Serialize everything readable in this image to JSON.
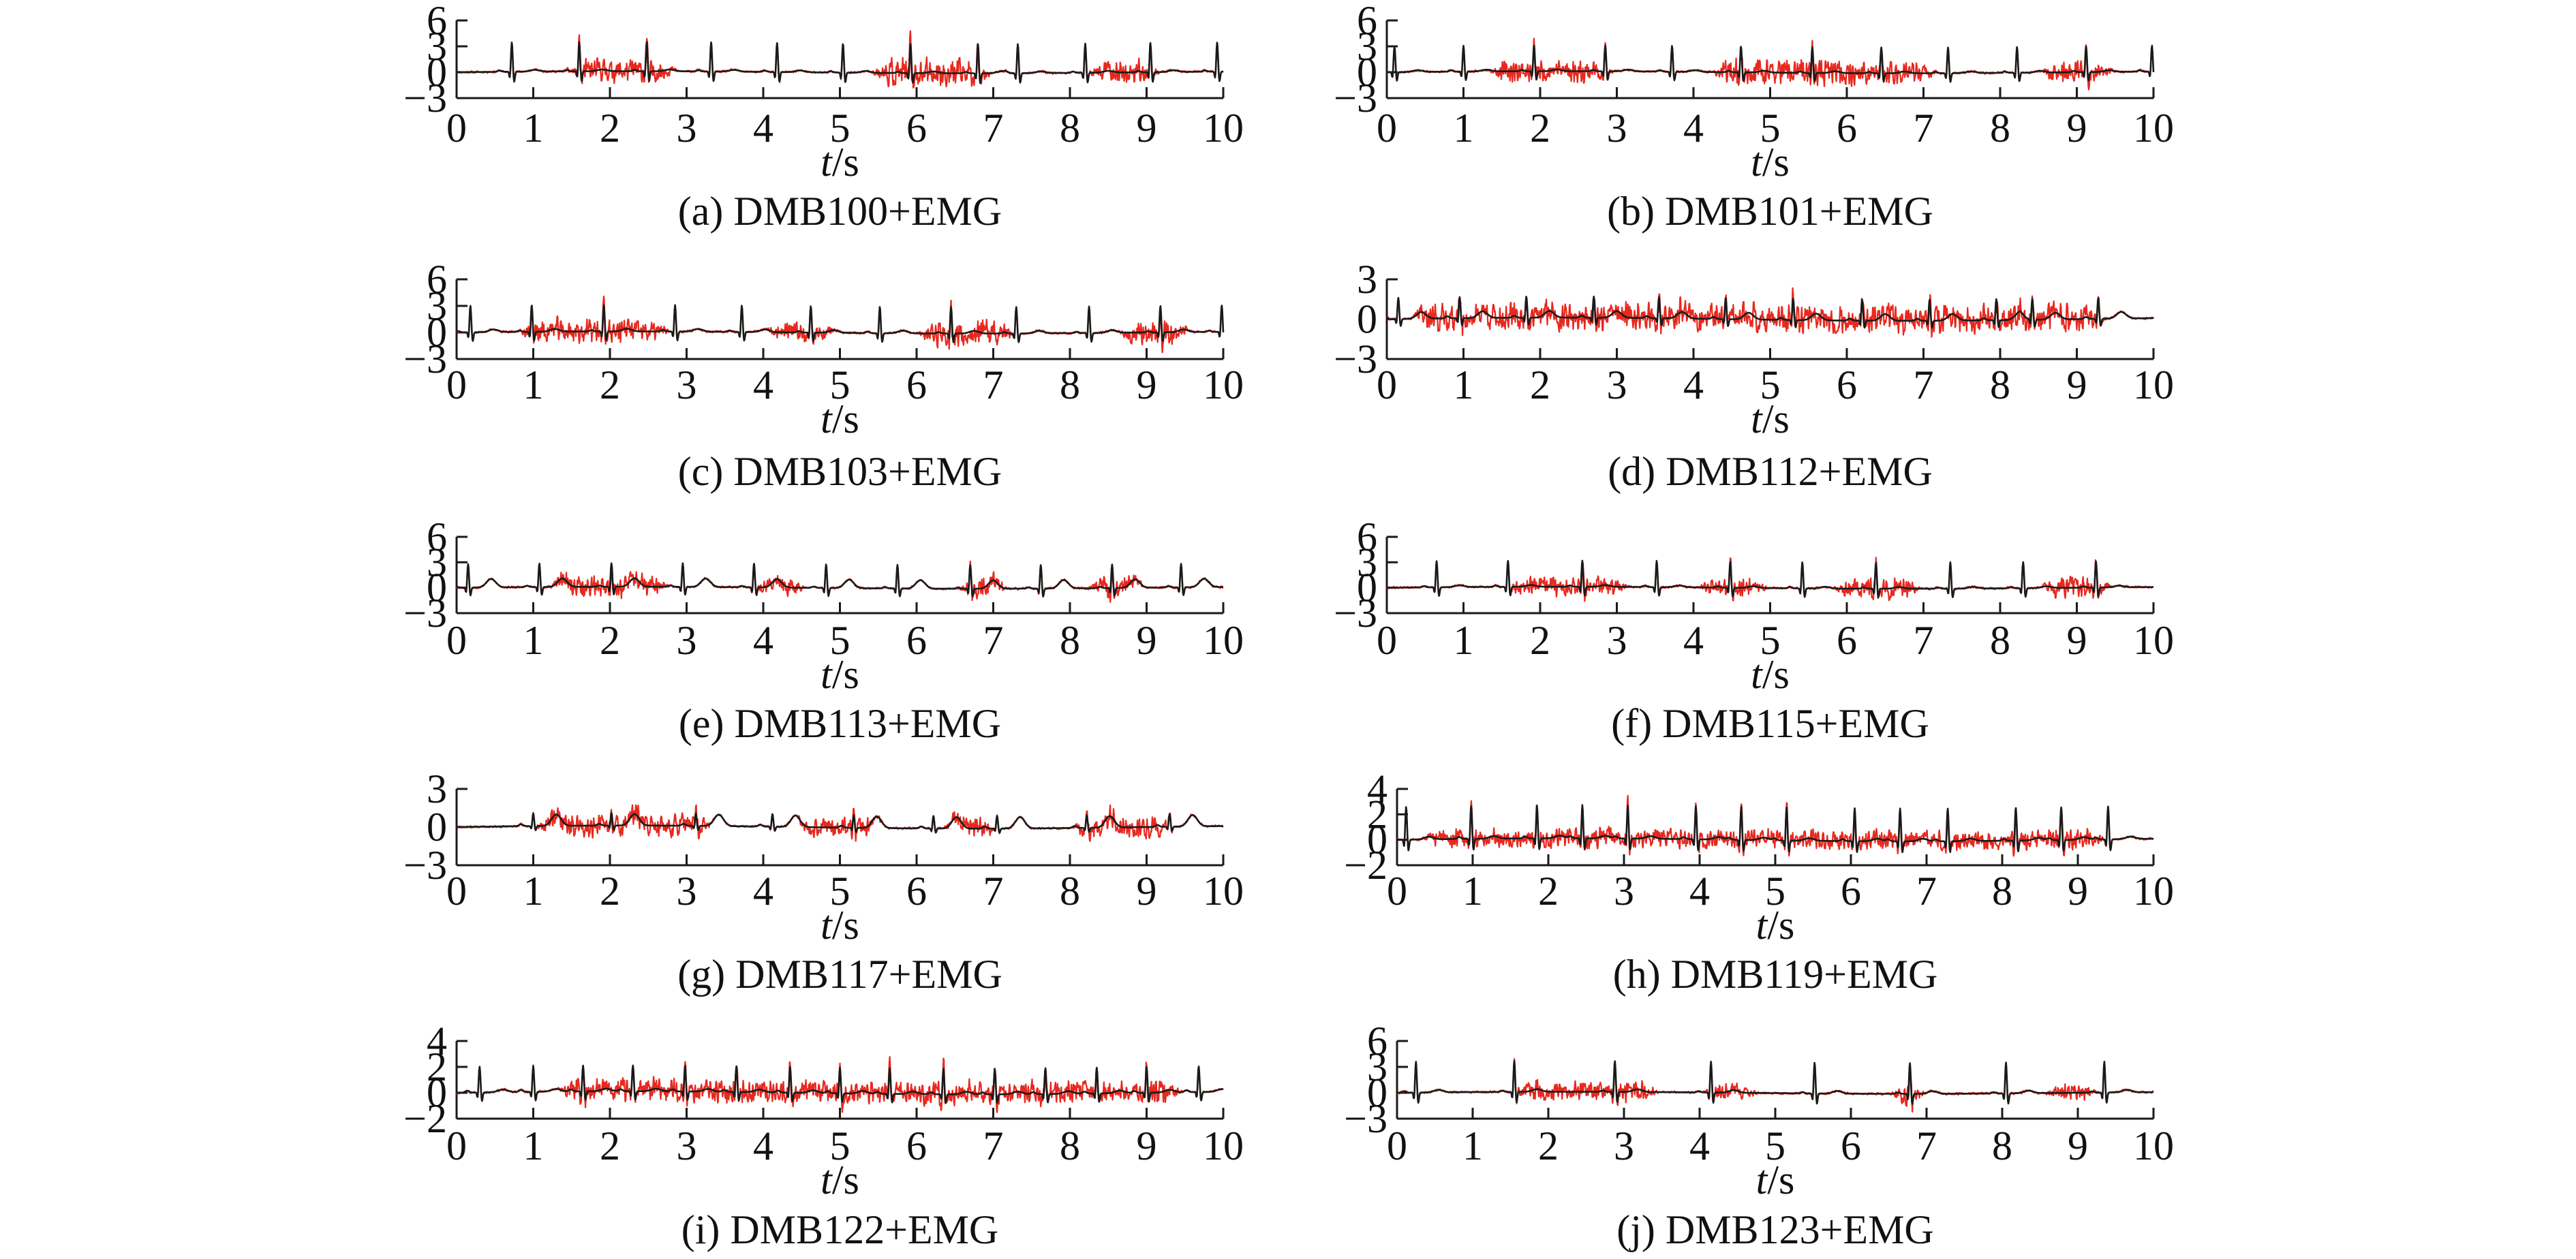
{
  "colors": {
    "clean": "#1a1a1a",
    "noisy": "#e8281e",
    "axis": "#1a1a1a"
  },
  "chart_data": [
    {
      "type": "line",
      "caption": "(a) DMB100+EMG",
      "x_var": "t",
      "x_unit": "/s",
      "xlim": [
        0,
        10
      ],
      "xticks": [
        "0",
        "1",
        "2",
        "3",
        "4",
        "5",
        "6",
        "7",
        "8",
        "9",
        "10"
      ],
      "ylim": [
        -3,
        6
      ],
      "yticks": [
        {
          "v": 6,
          "label": "6"
        },
        {
          "v": 3,
          "label": "3"
        },
        {
          "v": 0,
          "label": "0"
        },
        {
          "v": -3,
          "label": "−3"
        }
      ],
      "beats": [
        0.72,
        1.6,
        2.48,
        3.32,
        4.18,
        5.04,
        5.92,
        6.8,
        7.32,
        8.2,
        9.05,
        9.92
      ],
      "r_amp": 3.4,
      "t_amp": 0.2,
      "noise": [
        [
          1.4,
          2.9,
          1.3
        ],
        [
          5.4,
          7.0,
          1.6
        ],
        [
          8.2,
          9.2,
          1.3
        ]
      ],
      "seed": 11
    },
    {
      "type": "line",
      "caption": "(b) DMB101+EMG",
      "x_var": "t",
      "x_unit": "/s",
      "xlim": [
        0,
        10
      ],
      "xticks": [
        "0",
        "1",
        "2",
        "3",
        "4",
        "5",
        "6",
        "7",
        "8",
        "9",
        "10"
      ],
      "ylim": [
        -3,
        6
      ],
      "yticks": [
        {
          "v": 6,
          "label": "6"
        },
        {
          "v": 3,
          "label": "3"
        },
        {
          "v": 0,
          "label": "0"
        },
        {
          "v": -3,
          "label": "−3"
        }
      ],
      "beats": [
        0.1,
        1.0,
        1.92,
        2.85,
        3.72,
        4.62,
        5.55,
        6.45,
        7.32,
        8.22,
        9.12,
        9.98
      ],
      "r_amp": 3.0,
      "t_amp": 0.2,
      "noise": [
        [
          1.3,
          3.0,
          1.2
        ],
        [
          4.2,
          7.2,
          1.4
        ],
        [
          8.5,
          9.5,
          1.2
        ]
      ],
      "seed": 23
    },
    {
      "type": "line",
      "caption": "(c) DMB103+EMG",
      "x_var": "t",
      "x_unit": "/s",
      "xlim": [
        0,
        10
      ],
      "xticks": [
        "0",
        "1",
        "2",
        "3",
        "4",
        "5",
        "6",
        "7",
        "8",
        "9",
        "10"
      ],
      "ylim": [
        -3,
        6
      ],
      "yticks": [
        {
          "v": 6,
          "label": "6"
        },
        {
          "v": 3,
          "label": "3"
        },
        {
          "v": 0,
          "label": "0"
        },
        {
          "v": -3,
          "label": "−3"
        }
      ],
      "beats": [
        0.18,
        0.98,
        1.92,
        2.85,
        3.72,
        4.62,
        5.52,
        6.45,
        7.3,
        8.25,
        9.18,
        9.98
      ],
      "r_amp": 3.0,
      "t_amp": 0.3,
      "noise": [
        [
          0.8,
          2.8,
          1.3
        ],
        [
          4.0,
          5.0,
          1.0
        ],
        [
          6.0,
          7.3,
          1.5
        ],
        [
          8.6,
          9.6,
          1.4
        ]
      ],
      "seed": 37
    },
    {
      "type": "line",
      "caption": "(d) DMB112+EMG",
      "x_var": "t",
      "x_unit": "/s",
      "xlim": [
        0,
        10
      ],
      "xticks": [
        "0",
        "1",
        "2",
        "3",
        "4",
        "5",
        "6",
        "7",
        "8",
        "9",
        "10"
      ],
      "ylim": [
        -3,
        3
      ],
      "yticks": [
        {
          "v": 3,
          "label": "3"
        },
        {
          "v": 0,
          "label": "0"
        },
        {
          "v": -3,
          "label": "−3"
        }
      ],
      "beats": [
        0.15,
        0.95,
        1.82,
        2.7,
        3.55,
        4.42,
        5.3,
        6.2,
        7.08,
        7.95,
        8.42,
        9.28
      ],
      "r_amp": 1.6,
      "t_amp": 0.5,
      "noise": [
        [
          0.3,
          9.4,
          1.5
        ]
      ],
      "seed": 41
    },
    {
      "type": "line",
      "caption": "(e) DMB113+EMG",
      "x_var": "t",
      "x_unit": "/s",
      "xlim": [
        0,
        10
      ],
      "xticks": [
        "0",
        "1",
        "2",
        "3",
        "4",
        "5",
        "6",
        "7",
        "8",
        "9",
        "10"
      ],
      "ylim": [
        -3,
        6
      ],
      "yticks": [
        {
          "v": 6,
          "label": "6"
        },
        {
          "v": 3,
          "label": "3"
        },
        {
          "v": 0,
          "label": "0"
        },
        {
          "v": -3,
          "label": "−3"
        }
      ],
      "beats": [
        0.15,
        1.08,
        2.02,
        2.95,
        3.88,
        4.82,
        5.75,
        6.7,
        7.62,
        8.55,
        9.45
      ],
      "r_amp": 2.8,
      "t_amp": 1.0,
      "noise": [
        [
          1.2,
          2.8,
          1.3
        ],
        [
          3.8,
          4.6,
          1.0
        ],
        [
          6.5,
          7.2,
          1.5
        ],
        [
          8.2,
          9.0,
          1.3
        ]
      ],
      "seed": 53
    },
    {
      "type": "line",
      "caption": "(f) DMB115+EMG",
      "x_var": "t",
      "x_unit": "/s",
      "xlim": [
        0,
        10
      ],
      "xticks": [
        "0",
        "1",
        "2",
        "3",
        "4",
        "5",
        "6",
        "7",
        "8",
        "9",
        "10"
      ],
      "ylim": [
        -3,
        6
      ],
      "yticks": [
        {
          "v": 6,
          "label": "6"
        },
        {
          "v": 3,
          "label": "3"
        },
        {
          "v": 0,
          "label": "0"
        },
        {
          "v": -3,
          "label": "−3"
        }
      ],
      "beats": [
        0.65,
        1.58,
        2.55,
        3.52,
        4.48,
        5.42,
        6.38,
        7.35,
        8.3,
        9.25
      ],
      "r_amp": 3.1,
      "t_amp": 0.2,
      "noise": [
        [
          1.5,
          3.2,
          1.1
        ],
        [
          4.0,
          5.0,
          1.0
        ],
        [
          5.8,
          7.0,
          1.2
        ],
        [
          8.5,
          9.5,
          1.2
        ]
      ],
      "seed": 61
    },
    {
      "type": "line",
      "caption": "(g) DMB117+EMG",
      "x_var": "t",
      "x_unit": "/s",
      "xlim": [
        0,
        10
      ],
      "xticks": [
        "0",
        "1",
        "2",
        "3",
        "4",
        "5",
        "6",
        "7",
        "8",
        "9",
        "10"
      ],
      "ylim": [
        -3,
        3
      ],
      "yticks": [
        {
          "v": 3,
          "label": "3"
        },
        {
          "v": 0,
          "label": "0"
        },
        {
          "v": -3,
          "label": "−3"
        }
      ],
      "beats": [
        1.0,
        2.02,
        3.12,
        4.12,
        5.18,
        6.22,
        7.05,
        8.22,
        9.3
      ],
      "r_amp": 1.0,
      "t_amp": 0.9,
      "noise": [
        [
          1.0,
          3.4,
          1.3
        ],
        [
          4.4,
          5.6,
          1.2
        ],
        [
          6.3,
          7.1,
          1.2
        ],
        [
          8.0,
          9.4,
          1.3
        ]
      ],
      "seed": 71
    },
    {
      "type": "line",
      "caption": "(h) DMB119+EMG",
      "x_var": "t",
      "x_unit": "/s",
      "xlim": [
        0,
        10
      ],
      "xticks": [
        "0",
        "1",
        "2",
        "3",
        "4",
        "5",
        "6",
        "7",
        "8",
        "9",
        "10"
      ],
      "ylim": [
        -2,
        4
      ],
      "yticks": [
        {
          "v": 4,
          "label": "4"
        },
        {
          "v": 2,
          "label": "2"
        },
        {
          "v": 0,
          "label": "0"
        },
        {
          "v": -2,
          "label": "−2"
        }
      ],
      "beats": [
        0.12,
        0.98,
        1.85,
        2.45,
        3.05,
        3.95,
        4.55,
        5.15,
        6.05,
        6.65,
        7.28,
        8.18,
        8.78,
        9.4
      ],
      "r_amp": 2.6,
      "t_amp": 0.2,
      "noise": [
        [
          0.3,
          9.4,
          1.1
        ]
      ],
      "seed": 83
    },
    {
      "type": "line",
      "caption": "(i) DMB122+EMG",
      "x_var": "t",
      "x_unit": "/s",
      "xlim": [
        0,
        10
      ],
      "xticks": [
        "0",
        "1",
        "2",
        "3",
        "4",
        "5",
        "6",
        "7",
        "8",
        "9",
        "10"
      ],
      "ylim": [
        -2,
        4
      ],
      "yticks": [
        {
          "v": 4,
          "label": "4"
        },
        {
          "v": 2,
          "label": "2"
        },
        {
          "v": 0,
          "label": "0"
        },
        {
          "v": -2,
          "label": "−2"
        }
      ],
      "beats": [
        0.3,
        1.0,
        1.65,
        2.3,
        2.98,
        3.65,
        4.35,
        5.0,
        5.65,
        6.35,
        7.02,
        7.68,
        8.35,
        9.0,
        9.68
      ],
      "r_amp": 2.0,
      "t_amp": 0.2,
      "noise": [
        [
          1.3,
          9.5,
          1.3
        ]
      ],
      "seed": 97
    },
    {
      "type": "line",
      "caption": "(j) DMB123+EMG",
      "x_var": "t",
      "x_unit": "/s",
      "xlim": [
        0,
        10
      ],
      "xticks": [
        "0",
        "1",
        "2",
        "3",
        "4",
        "5",
        "6",
        "7",
        "8",
        "9",
        "10"
      ],
      "ylim": [
        -3,
        6
      ],
      "yticks": [
        {
          "v": 6,
          "label": "6"
        },
        {
          "v": 3,
          "label": "3"
        },
        {
          "v": 0,
          "label": "0"
        },
        {
          "v": -3,
          "label": "−3"
        }
      ],
      "beats": [
        0.25,
        1.55,
        2.88,
        4.15,
        5.52,
        6.78,
        8.05,
        9.35
      ],
      "r_amp": 3.6,
      "t_amp": 0.3,
      "noise": [
        [
          1.5,
          3.5,
          1.1
        ],
        [
          4.0,
          4.8,
          0.9
        ],
        [
          6.5,
          7.0,
          1.5
        ],
        [
          8.5,
          9.3,
          1.0
        ]
      ],
      "seed": 109
    }
  ]
}
